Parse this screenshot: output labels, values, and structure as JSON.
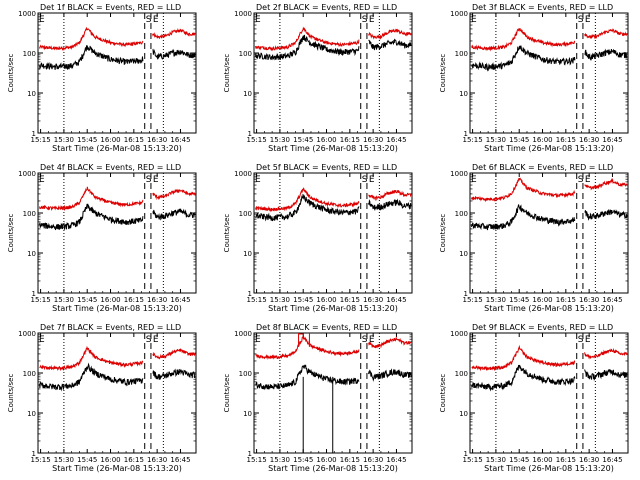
{
  "figure": {
    "colors": {
      "events": "#000000",
      "lld": "#dd0000",
      "axes": "#000000"
    },
    "line_styles": {
      "dotted_marker": "dotted",
      "dashed_marker": "dashed"
    },
    "panels": [
      {
        "title": "Det 1f BLACK = Events, RED = LLD",
        "ylabel": "Counts/sec",
        "xlabel": "Start Time (26-Mar-08 15:13:20)",
        "label_E": "E",
        "label_S": "S",
        "label_E2": "E",
        "level_events": 1.0,
        "level_lld": 1.0,
        "glitch": false
      },
      {
        "title": "Det 2f BLACK = Events, RED = LLD",
        "ylabel": "Counts/sec",
        "xlabel": "Start Time (26-Mar-08 15:13:20)",
        "label_E": "E",
        "label_S": "S",
        "label_E2": "E",
        "level_events": 1.75,
        "level_lld": 1.0,
        "glitch": false
      },
      {
        "title": "Det 3f BLACK = Events, RED = LLD",
        "ylabel": "Counts/sec",
        "xlabel": "Start Time (26-Mar-08 15:13:20)",
        "label_E": "E",
        "label_S": "S",
        "label_E2": "E",
        "level_events": 1.0,
        "level_lld": 1.0,
        "glitch": false
      },
      {
        "title": "Det 4f BLACK = Events, RED = LLD",
        "ylabel": "Counts/sec",
        "xlabel": "Start Time (26-Mar-08 15:13:20)",
        "label_E": "E",
        "label_S": "S",
        "label_E2": "E",
        "level_events": 1.0,
        "level_lld": 1.0,
        "glitch": false
      },
      {
        "title": "Det 5f BLACK = Events, RED = LLD",
        "ylabel": "Counts/sec",
        "xlabel": "Start Time (26-Mar-08 15:13:20)",
        "label_E": "E",
        "label_S": "S",
        "label_E2": "E",
        "level_events": 1.7,
        "level_lld": 0.95,
        "glitch": false
      },
      {
        "title": "Det 6f BLACK = Events, RED = LLD",
        "ylabel": "Counts/sec",
        "xlabel": "Start Time (26-Mar-08 15:13:20)",
        "label_E": "E",
        "label_S": "S",
        "label_E2": "E",
        "level_events": 1.0,
        "level_lld": 1.7,
        "glitch": false
      },
      {
        "title": "Det 7f BLACK = Events, RED = LLD",
        "ylabel": "Counts/sec",
        "xlabel": "Start Time (26-Mar-08 15:13:20)",
        "label_E": "E",
        "label_S": "S",
        "label_E2": "E",
        "level_events": 1.0,
        "level_lld": 1.0,
        "glitch": false
      },
      {
        "title": "Det 8f BLACK = Events, RED = LLD",
        "ylabel": "Counts/sec",
        "xlabel": "Start Time (26-Mar-08 15:13:20)",
        "label_E": "E",
        "label_S": "S",
        "label_E2": "E",
        "level_events": 1.0,
        "level_lld": 1.9,
        "glitch": true
      },
      {
        "title": "Det 9f BLACK = Events, RED = LLD",
        "ylabel": "Counts/sec",
        "xlabel": "Start Time (26-Mar-08 15:13:20)",
        "label_E": "E",
        "label_S": "S",
        "label_E2": "E",
        "level_events": 1.0,
        "level_lld": 1.0,
        "glitch": false
      }
    ]
  },
  "chart_data": {
    "type": "line",
    "layout": "3x3 grid",
    "log_y": true,
    "ylim": [
      1,
      1000
    ],
    "xlim": [
      "15:13:20",
      "16:55:00"
    ],
    "x_tick_labels": [
      "15:15",
      "15:30",
      "15:45",
      "16:00",
      "16:15",
      "16:30",
      "16:45"
    ],
    "y_tick_labels": [
      "1",
      "10",
      "100",
      "1000"
    ],
    "vertical_markers": [
      {
        "time": "15:30",
        "style": "dotted"
      },
      {
        "time": "16:22",
        "style": "dashed"
      },
      {
        "time": "16:26",
        "style": "dashed"
      },
      {
        "time": "16:34",
        "style": "dotted"
      }
    ],
    "x": [
      "15:15",
      "15:25",
      "15:35",
      "15:40",
      "15:45",
      "15:50",
      "16:00",
      "16:10",
      "16:20",
      "16:25",
      "16:30",
      "16:35",
      "16:40",
      "16:45",
      "16:50"
    ],
    "series": [
      {
        "name": "BLACK = Events",
        "color": "#000000",
        "values": [
          50,
          45,
          48,
          60,
          150,
          100,
          70,
          60,
          65,
          140,
          80,
          85,
          100,
          110,
          90
        ]
      },
      {
        "name": "RED = LLD",
        "color": "#dd0000",
        "values": [
          140,
          130,
          140,
          180,
          420,
          250,
          180,
          160,
          180,
          350,
          250,
          260,
          330,
          370,
          300
        ]
      }
    ]
  }
}
